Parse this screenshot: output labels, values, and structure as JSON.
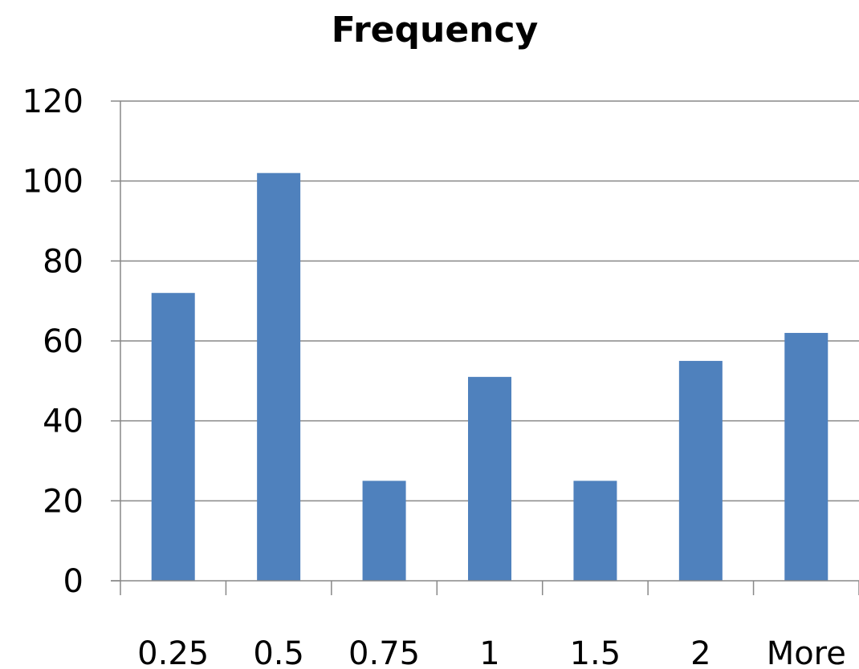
{
  "chart_data": {
    "type": "bar",
    "title": "Frequency",
    "xlabel": "",
    "ylabel": "",
    "categories": [
      "0.25",
      "0.5",
      "0.75",
      "1",
      "1.5",
      "2",
      "More"
    ],
    "values": [
      72,
      102,
      25,
      51,
      25,
      55,
      62
    ],
    "ylim": [
      0,
      120
    ],
    "yticks": [
      0,
      20,
      40,
      60,
      80,
      100,
      120
    ],
    "grid": true,
    "legend": "none",
    "colors": {
      "bar": "#4f81bd",
      "grid": "#888888",
      "axis": "#888888"
    }
  }
}
